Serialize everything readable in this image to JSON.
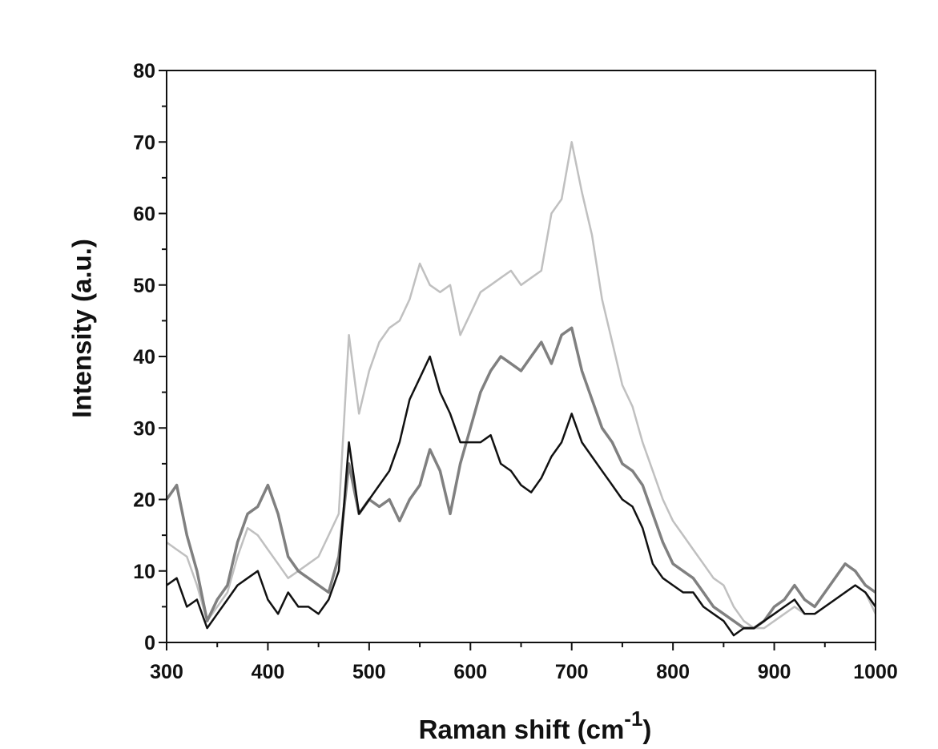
{
  "chart_data": {
    "type": "line",
    "y_label": "Intensity (a.u.)",
    "x_label": {
      "text": "Raman shift (cm",
      "superscript": "-1",
      "suffix": ")"
    },
    "xlim": [
      300,
      1000
    ],
    "xticks": [
      300,
      400,
      500,
      600,
      700,
      800,
      900,
      1000
    ],
    "xminorticks": [
      350,
      450,
      550,
      650,
      750,
      850,
      950
    ],
    "ylim": [
      0,
      80
    ],
    "yticks": [
      0,
      10,
      20,
      30,
      40,
      50,
      60,
      70,
      80
    ],
    "yminorticks": [
      5,
      15,
      25,
      35,
      45,
      55,
      65,
      75
    ],
    "x": [
      300,
      310,
      320,
      330,
      340,
      350,
      360,
      370,
      380,
      390,
      400,
      410,
      420,
      430,
      440,
      450,
      460,
      470,
      480,
      490,
      500,
      510,
      520,
      530,
      540,
      550,
      560,
      570,
      580,
      590,
      600,
      610,
      620,
      630,
      640,
      650,
      660,
      670,
      680,
      690,
      700,
      710,
      720,
      730,
      740,
      750,
      760,
      770,
      780,
      790,
      800,
      810,
      820,
      830,
      840,
      850,
      860,
      870,
      880,
      890,
      900,
      910,
      920,
      930,
      940,
      950,
      960,
      970,
      980,
      990,
      1000
    ],
    "series": [
      {
        "color": "#c0c0c0",
        "width": 2.5,
        "values": [
          14,
          13,
          12,
          8,
          3,
          5,
          7,
          12,
          16,
          15,
          13,
          11,
          9,
          10,
          11,
          12,
          15,
          18,
          43,
          32,
          38,
          42,
          44,
          45,
          48,
          53,
          50,
          49,
          50,
          43,
          46,
          49,
          50,
          51,
          52,
          50,
          51,
          52,
          60,
          62,
          70,
          63,
          57,
          48,
          42,
          36,
          33,
          28,
          24,
          20,
          17,
          15,
          13,
          11,
          9,
          8,
          5,
          3,
          2,
          2,
          3,
          4,
          5,
          4,
          4,
          5,
          6,
          7,
          8,
          7,
          4
        ]
      },
      {
        "color": "#808080",
        "width": 3.5,
        "values": [
          20,
          22,
          15,
          10,
          3,
          6,
          8,
          14,
          18,
          19,
          22,
          18,
          12,
          10,
          9,
          8,
          7,
          12,
          25,
          18,
          20,
          19,
          20,
          17,
          20,
          22,
          27,
          24,
          18,
          25,
          30,
          35,
          38,
          40,
          39,
          38,
          40,
          42,
          39,
          43,
          44,
          38,
          34,
          30,
          28,
          25,
          24,
          22,
          18,
          14,
          11,
          10,
          9,
          7,
          5,
          4,
          3,
          2,
          2,
          3,
          5,
          6,
          8,
          6,
          5,
          7,
          9,
          11,
          10,
          8,
          7
        ]
      },
      {
        "color": "#111111",
        "width": 2.5,
        "values": [
          8,
          9,
          5,
          6,
          2,
          4,
          6,
          8,
          9,
          10,
          6,
          4,
          7,
          5,
          5,
          4,
          6,
          10,
          28,
          18,
          20,
          22,
          24,
          28,
          34,
          37,
          40,
          35,
          32,
          28,
          28,
          28,
          29,
          25,
          24,
          22,
          21,
          23,
          26,
          28,
          32,
          28,
          26,
          24,
          22,
          20,
          19,
          16,
          11,
          9,
          8,
          7,
          7,
          5,
          4,
          3,
          1,
          2,
          2,
          3,
          4,
          5,
          6,
          4,
          4,
          5,
          6,
          7,
          8,
          7,
          5
        ]
      }
    ]
  }
}
